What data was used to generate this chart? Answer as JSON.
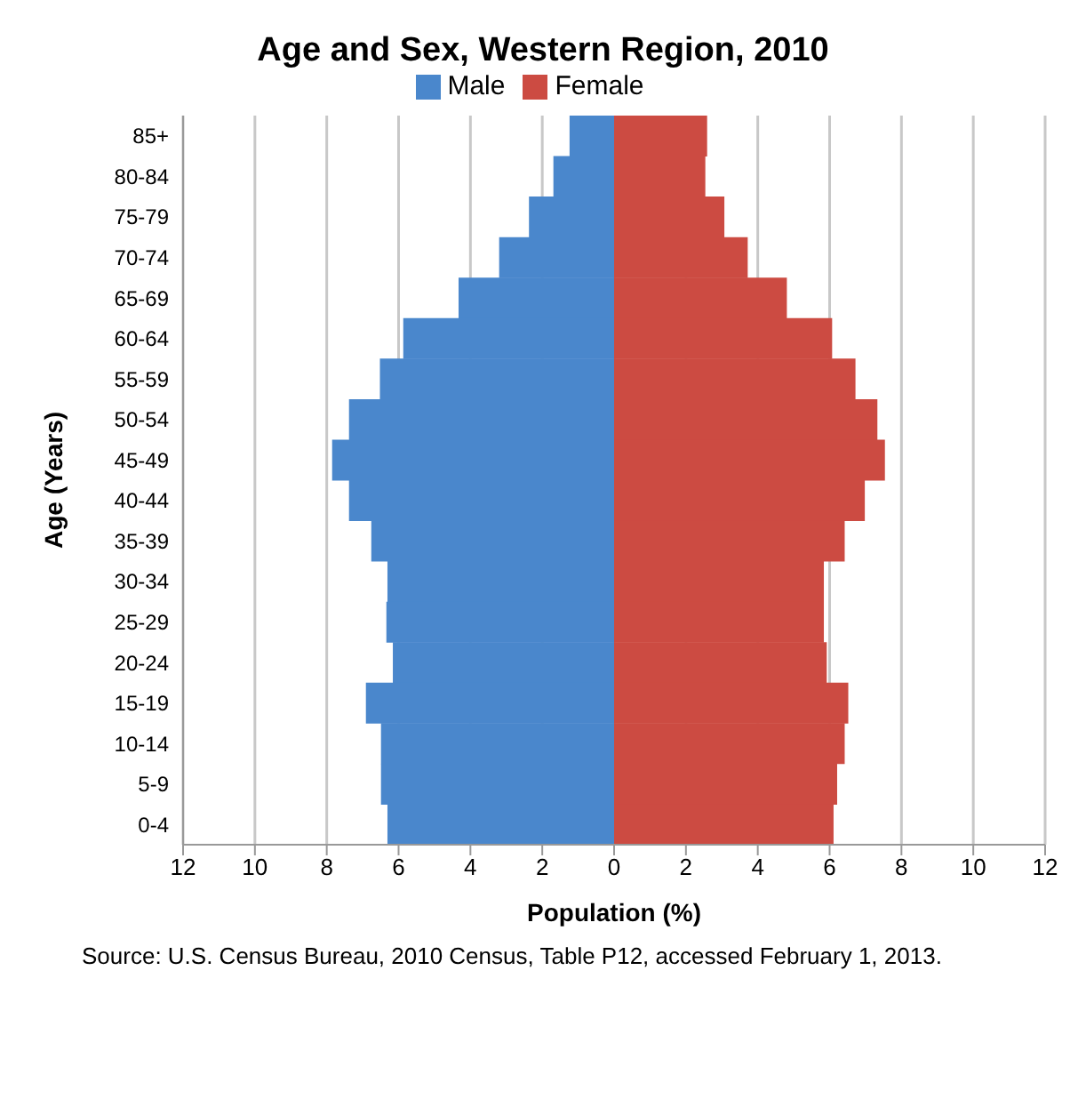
{
  "chart_data": {
    "type": "bar",
    "orientation": "horizontal",
    "stacked": true,
    "title": "Age and Sex, Western Region, 2010",
    "xlabel": "Population (%)",
    "ylabel": "Age (Years)",
    "categories": [
      "85+",
      "80-84",
      "75-79",
      "70-74",
      "65-69",
      "60-64",
      "55-59",
      "50-54",
      "45-49",
      "40-44",
      "35-39",
      "30-34",
      "25-29",
      "20-24",
      "15-19",
      "10-14",
      "5-9",
      "0-4"
    ],
    "series": [
      {
        "name": "Male",
        "color": "#4a87cc",
        "values": [
          -1.24,
          -1.69,
          -2.37,
          -3.2,
          -4.33,
          -5.87,
          -6.52,
          -7.38,
          -7.85,
          -7.38,
          -6.76,
          -6.31,
          -6.34,
          -6.16,
          -6.91,
          -6.49,
          -6.49,
          -6.31
        ]
      },
      {
        "name": "Female",
        "color": "#cc4b42",
        "values": [
          2.59,
          2.54,
          3.07,
          3.72,
          4.81,
          6.07,
          6.72,
          7.33,
          7.54,
          6.98,
          6.42,
          5.84,
          5.84,
          5.92,
          6.52,
          6.42,
          6.21,
          6.11
        ]
      }
    ],
    "xlim": [
      -12,
      12
    ],
    "xticks": [
      {
        "value": -12,
        "label": "12"
      },
      {
        "value": -10,
        "label": "10"
      },
      {
        "value": -8,
        "label": "8"
      },
      {
        "value": -6,
        "label": "6"
      },
      {
        "value": -4,
        "label": "4"
      },
      {
        "value": -2,
        "label": "2"
      },
      0,
      2,
      4,
      6,
      8,
      10,
      12
    ],
    "grid": "x",
    "legend": "top",
    "annotations": [
      "Source: U.S. Census Bureau, 2010 Census, Table P12, accessed February 1, 2013."
    ]
  }
}
